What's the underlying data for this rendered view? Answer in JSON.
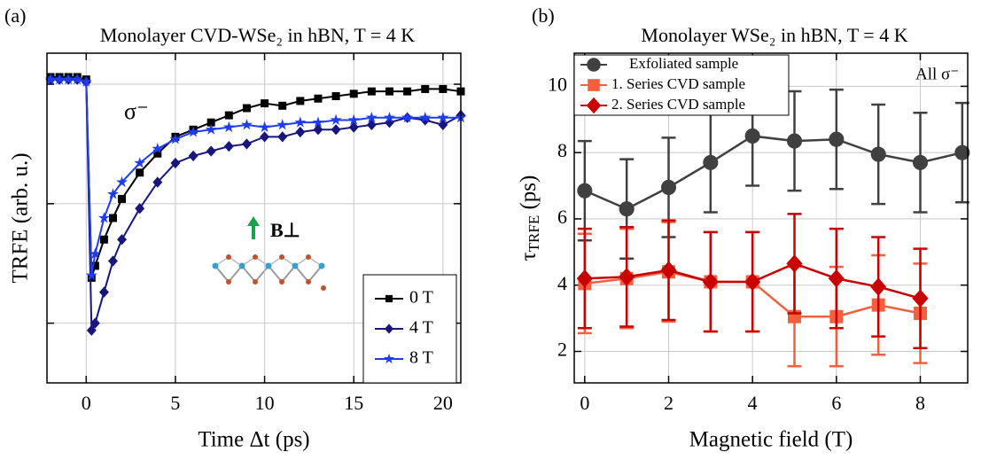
{
  "chart_data": [
    {
      "type": "line",
      "panel_label": "(a)",
      "title": "Monolayer CVD-WSe₂ in hBN, T = 4 K",
      "xlabel": "Time Δt (ps)",
      "ylabel": "TRFE (arb. u.)",
      "x": [
        -2,
        -1.5,
        -1,
        -0.5,
        0,
        0.3,
        0.5,
        1,
        1.5,
        2,
        3,
        4,
        5,
        6,
        7,
        8,
        9,
        10,
        11,
        12,
        13,
        14,
        15,
        16,
        17,
        18,
        19,
        20,
        21
      ],
      "series": [
        {
          "name": "0 T",
          "color": "#000000",
          "marker": "square",
          "values": [
            1.03,
            1.03,
            1.03,
            1.03,
            1.02,
            0.19,
            0.24,
            0.35,
            0.44,
            0.52,
            0.63,
            0.71,
            0.78,
            0.81,
            0.84,
            0.87,
            0.9,
            0.92,
            0.91,
            0.93,
            0.94,
            0.95,
            0.96,
            0.97,
            0.97,
            0.97,
            0.98,
            0.98,
            0.97
          ]
        },
        {
          "name": "4 T",
          "color": "#16167e",
          "marker": "diamond",
          "values": [
            1.02,
            1.02,
            1.02,
            1.02,
            1.01,
            -0.03,
            0.0,
            0.13,
            0.26,
            0.35,
            0.48,
            0.59,
            0.67,
            0.7,
            0.72,
            0.74,
            0.75,
            0.78,
            0.78,
            0.8,
            0.81,
            0.81,
            0.82,
            0.83,
            0.84,
            0.86,
            0.85,
            0.83,
            0.87
          ]
        },
        {
          "name": "8 T",
          "color": "#1f3cf0",
          "marker": "star",
          "values": [
            1.02,
            1.02,
            1.02,
            1.02,
            1.01,
            0.2,
            0.29,
            0.44,
            0.54,
            0.59,
            0.67,
            0.73,
            0.77,
            0.8,
            0.81,
            0.82,
            0.83,
            0.82,
            0.83,
            0.84,
            0.84,
            0.85,
            0.85,
            0.86,
            0.86,
            0.86,
            0.86,
            0.86,
            0.86
          ]
        }
      ],
      "xlim": [
        -2.2,
        21
      ],
      "xticks": [
        0,
        5,
        10,
        15,
        20
      ],
      "ylim": [
        -0.25,
        1.13
      ],
      "yticks": [
        0,
        0.5,
        1
      ],
      "ytick_labels": false,
      "grid": true,
      "legend": "lower right",
      "annotations": [
        "σ⁻",
        "B⊥"
      ]
    },
    {
      "type": "errorbar",
      "panel_label": "(b)",
      "title": "Monolayer WSe₂ in hBN, T = 4 K",
      "xlabel": "Magnetic field (T)",
      "ylabel": "τ",
      "ylabel_subscript": "TRFE",
      "ylabel_unit": " (ps)",
      "series": [
        {
          "name": "Exfoliated sample",
          "color": "#404040",
          "marker": "circle",
          "x": [
            0,
            1,
            2,
            3,
            4,
            5,
            6,
            7,
            8,
            9
          ],
          "values": [
            6.85,
            6.3,
            6.95,
            7.7,
            8.5,
            8.35,
            8.4,
            7.95,
            7.7,
            8.0
          ],
          "errors": [
            1.5,
            1.5,
            1.5,
            1.5,
            1.5,
            1.5,
            1.5,
            1.5,
            1.5,
            1.5
          ]
        },
        {
          "name": "1. Series CVD sample",
          "color": "#f4603e",
          "marker": "square",
          "x": [
            0,
            1,
            2,
            3,
            4,
            5,
            6,
            7,
            8
          ],
          "values": [
            4.05,
            4.2,
            4.4,
            4.1,
            4.1,
            3.05,
            3.05,
            3.4,
            3.15
          ],
          "errors": [
            1.5,
            1.5,
            1.5,
            1.5,
            1.5,
            1.5,
            1.5,
            1.5,
            1.5
          ]
        },
        {
          "name": "2. Series CVD sample",
          "color": "#c80000",
          "marker": "diamond",
          "x": [
            0,
            1,
            2,
            3,
            4,
            5,
            6,
            7,
            8
          ],
          "values": [
            4.2,
            4.25,
            4.45,
            4.1,
            4.1,
            4.65,
            4.2,
            3.95,
            3.6
          ],
          "errors": [
            1.5,
            1.5,
            1.5,
            1.5,
            1.5,
            1.5,
            1.5,
            1.5,
            1.5
          ]
        }
      ],
      "xlim": [
        -0.25,
        9.13
      ],
      "xticks": [
        0,
        2,
        4,
        6,
        8
      ],
      "ylim": [
        1.05,
        11
      ],
      "yticks": [
        2,
        4,
        6,
        8,
        10
      ],
      "ytick_labels": true,
      "grid": true,
      "legend": "upper left",
      "annotations": [
        "All σ⁻"
      ]
    }
  ]
}
